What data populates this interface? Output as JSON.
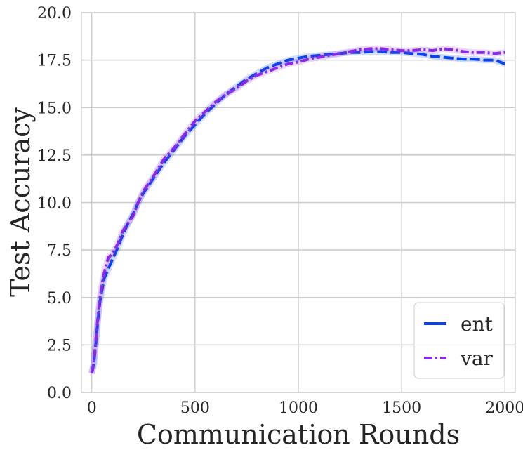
{
  "chart_data": {
    "type": "line",
    "title": "",
    "xlabel": "Communication Rounds",
    "ylabel": "Test Accuracy",
    "xlim": [
      -50,
      2050
    ],
    "ylim": [
      0,
      20
    ],
    "xticks": [
      0,
      500,
      1000,
      1500,
      2000
    ],
    "xtick_labels": [
      "0",
      "500",
      "1000",
      "1500",
      "2000"
    ],
    "yticks": [
      0,
      2.5,
      5,
      7.5,
      10,
      12.5,
      15,
      17.5,
      20
    ],
    "ytick_labels": [
      "0.0",
      "2.5",
      "5.0",
      "7.5",
      "10.0",
      "12.5",
      "15.0",
      "17.5",
      "20.0"
    ],
    "grid": true,
    "legend_position": "bottom-right",
    "series": [
      {
        "name": "ent",
        "color": "#0a43e8",
        "style": "dashed",
        "x": [
          0,
          10,
          20,
          30,
          40,
          50,
          60,
          80,
          100,
          125,
          150,
          175,
          200,
          225,
          250,
          275,
          300,
          350,
          400,
          450,
          500,
          550,
          600,
          650,
          700,
          750,
          800,
          850,
          900,
          950,
          1000,
          1050,
          1100,
          1150,
          1200,
          1250,
          1300,
          1350,
          1400,
          1450,
          1500,
          1550,
          1600,
          1650,
          1700,
          1750,
          1800,
          1850,
          1900,
          1950,
          2000
        ],
        "y": [
          1.0,
          1.5,
          2.6,
          3.8,
          4.8,
          5.4,
          6.0,
          6.5,
          7.0,
          7.6,
          8.3,
          8.9,
          9.4,
          10.0,
          10.5,
          10.9,
          11.3,
          12.1,
          12.8,
          13.5,
          14.1,
          14.7,
          15.2,
          15.7,
          16.1,
          16.5,
          16.8,
          17.1,
          17.3,
          17.5,
          17.6,
          17.7,
          17.75,
          17.8,
          17.85,
          17.9,
          17.9,
          17.95,
          17.95,
          17.9,
          17.9,
          17.85,
          17.8,
          17.7,
          17.65,
          17.6,
          17.55,
          17.55,
          17.5,
          17.5,
          17.3
        ]
      },
      {
        "name": "var",
        "color": "#8a2be2",
        "style": "dashdot",
        "x": [
          0,
          10,
          20,
          30,
          40,
          50,
          60,
          80,
          100,
          125,
          150,
          175,
          200,
          225,
          250,
          275,
          300,
          350,
          400,
          450,
          500,
          550,
          600,
          650,
          700,
          750,
          800,
          850,
          900,
          950,
          1000,
          1050,
          1100,
          1150,
          1200,
          1250,
          1300,
          1350,
          1400,
          1450,
          1500,
          1550,
          1600,
          1650,
          1700,
          1750,
          1800,
          1850,
          1900,
          1950,
          2000
        ],
        "y": [
          1.0,
          1.6,
          2.8,
          4.0,
          5.0,
          5.7,
          6.3,
          7.1,
          7.3,
          7.8,
          8.5,
          8.9,
          9.3,
          10.0,
          10.6,
          11.0,
          11.4,
          12.3,
          12.9,
          13.6,
          14.3,
          14.8,
          15.3,
          15.7,
          16.0,
          16.4,
          16.7,
          16.9,
          17.1,
          17.3,
          17.4,
          17.55,
          17.65,
          17.75,
          17.85,
          17.95,
          18.05,
          18.1,
          18.1,
          18.05,
          18.0,
          18.0,
          18.05,
          18.0,
          18.1,
          18.05,
          17.95,
          17.9,
          17.9,
          17.85,
          17.9
        ]
      }
    ]
  }
}
